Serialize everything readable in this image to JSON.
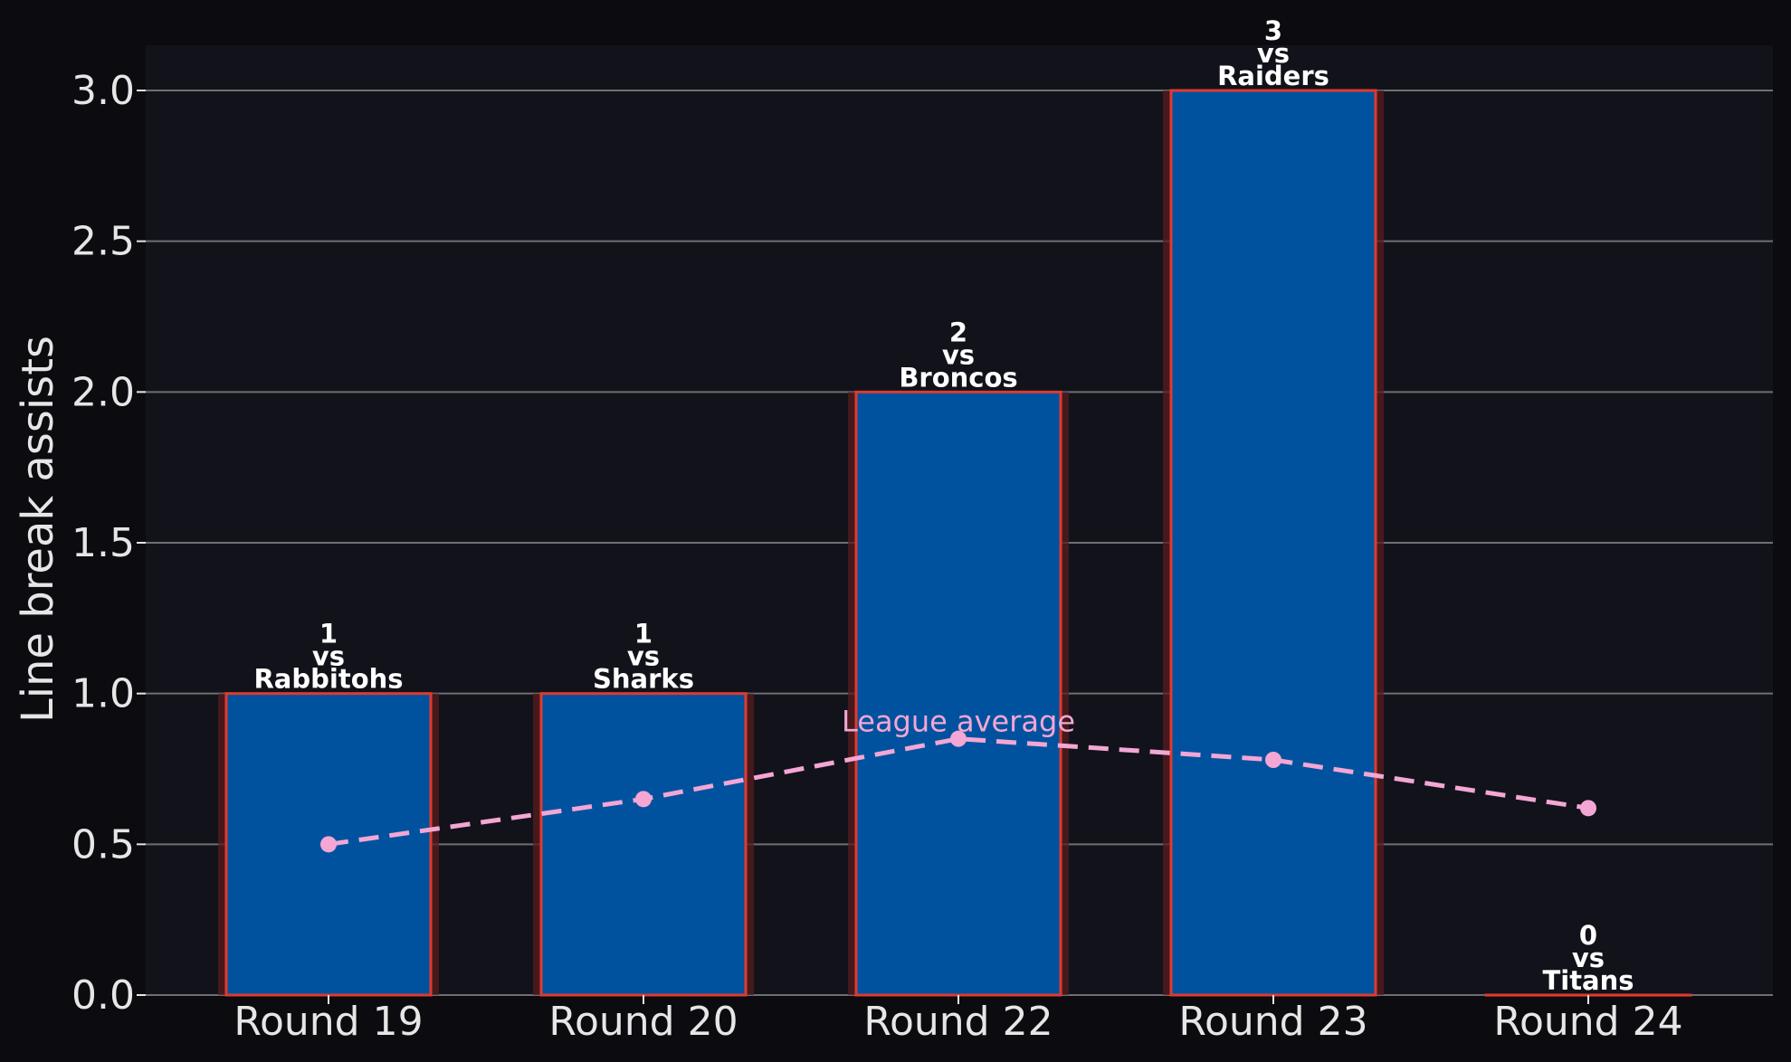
{
  "chart_data": {
    "type": "bar",
    "categories": [
      "Round 19",
      "Round 20",
      "Round 22",
      "Round 23",
      "Round 24"
    ],
    "values": [
      1,
      1,
      2,
      3,
      0
    ],
    "opponents": [
      "Rabbitohs",
      "Sharks",
      "Broncos",
      "Raiders",
      "Titans"
    ],
    "vs_text": "vs",
    "ylabel": "Line break assists",
    "xlabel": "",
    "title": "",
    "ylim": [
      0,
      3.15
    ],
    "yticks": [
      "0.0",
      "0.5",
      "1.0",
      "1.5",
      "2.0",
      "2.5",
      "3.0"
    ],
    "grid": "y",
    "overlay": {
      "type": "line",
      "label": "League average",
      "values": [
        0.5,
        0.65,
        0.85,
        0.78,
        0.62
      ]
    }
  },
  "colors": {
    "page_background": "#0b0b10",
    "plot_background": "#12131a",
    "bar_fill": "#00529f",
    "bar_edge": "#e03a2f",
    "bar_glow": "#5a1c1e",
    "grid": "#6e6e73",
    "text": "#e6e6e6",
    "average_line": "#f4a6d4"
  }
}
